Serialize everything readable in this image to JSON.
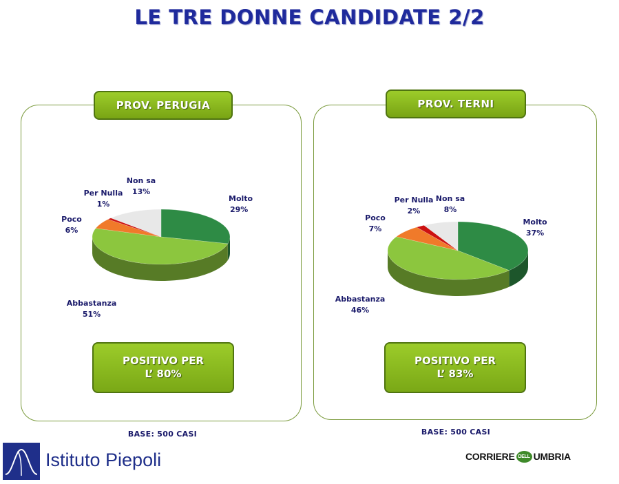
{
  "title": "LE TRE DONNE CANDIDATE 2/2",
  "colors": {
    "molto": "#2e8b45",
    "abbastanza": "#8cc63e",
    "poco": "#f07a2a",
    "per_nulla": "#cc1111",
    "non_sa": "#e8e8e8",
    "accent_green": "#8cbc22",
    "title_blue": "#1f2a9c"
  },
  "panels": [
    {
      "tab": "PROV. PERUGIA",
      "positive_line1": "POSITIVO PER",
      "positive_line2": "L’ 80%",
      "base": "BASE: 500 CASI"
    },
    {
      "tab": "PROV. TERNI",
      "positive_line1": "POSITIVO PER",
      "positive_line2": "L’ 83%",
      "base": "BASE: 500 CASI"
    }
  ],
  "chart_data": [
    {
      "type": "pie",
      "title": "PROV. PERUGIA",
      "slices": [
        {
          "name": "Molto",
          "value": 29,
          "label": "29%"
        },
        {
          "name": "Abbastanza",
          "value": 51,
          "label": "51%"
        },
        {
          "name": "Poco",
          "value": 6,
          "label": "6%"
        },
        {
          "name": "Per Nulla",
          "value": 1,
          "label": "1%"
        },
        {
          "name": "Non sa",
          "value": 13,
          "label": "13%"
        }
      ]
    },
    {
      "type": "pie",
      "title": "PROV. TERNI",
      "slices": [
        {
          "name": "Molto",
          "value": 37,
          "label": "37%"
        },
        {
          "name": "Abbastanza",
          "value": 46,
          "label": "46%"
        },
        {
          "name": "Poco",
          "value": 7,
          "label": "7%"
        },
        {
          "name": "Per Nulla",
          "value": 2,
          "label": "2%"
        },
        {
          "name": "Non sa",
          "value": 8,
          "label": "8%"
        }
      ]
    }
  ],
  "logos": {
    "left": "Istituto Piepoli",
    "right_a": "CORRIERE",
    "right_b": "DELL",
    "right_c": "UMBRIA"
  }
}
